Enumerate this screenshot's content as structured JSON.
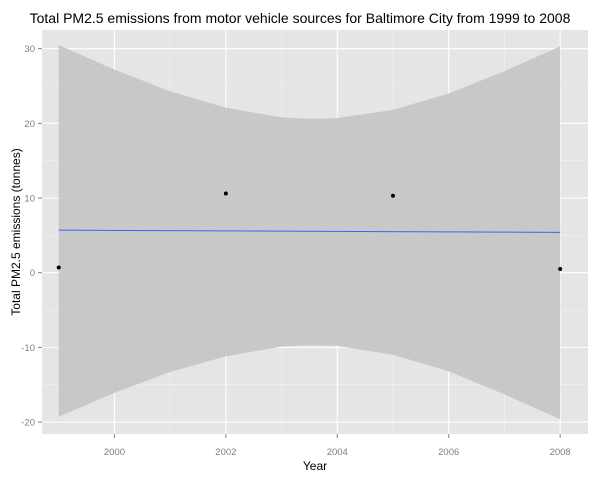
{
  "chart_data": {
    "type": "scatter",
    "title": "Total PM2.5 emissions from motor vehicle sources for Baltimore City from 1999 to 2008",
    "xlabel": "Year",
    "ylabel": "Total PM2.5 emissions (tonnes)",
    "x_ticks": [
      2000,
      2002,
      2004,
      2006,
      2008
    ],
    "y_ticks": [
      -20,
      -10,
      0,
      10,
      20,
      30
    ],
    "xlim": [
      1998.7,
      2008.5
    ],
    "ylim": [
      -21.6,
      32.5
    ],
    "grid": true,
    "legend": "none",
    "series": [
      {
        "x": [
          1999,
          2002,
          2005,
          2008
        ],
        "y": [
          0.7,
          10.6,
          10.3,
          0.5
        ]
      }
    ],
    "fit_line": {
      "method": "linear",
      "x": [
        1999,
        2008
      ],
      "y": [
        5.7,
        5.4
      ]
    },
    "confidence_band": {
      "x": [
        1999,
        2000,
        2001,
        2002,
        2003,
        2003.5,
        2004,
        2005,
        2006,
        2007,
        2008
      ],
      "upper": [
        30.5,
        27.2,
        24.3,
        22.1,
        20.8,
        20.6,
        20.7,
        21.8,
        24.0,
        27.0,
        30.3
      ],
      "lower": [
        -19.3,
        -16.1,
        -13.3,
        -11.2,
        -9.9,
        -9.7,
        -9.8,
        -11.0,
        -13.2,
        -16.3,
        -19.6
      ]
    },
    "colors": {
      "panel": "#e5e5e5",
      "grid_major": "#ffffff",
      "grid_minor": "#f2f2f2",
      "band": "#c8c8c8",
      "line": "#3366ff",
      "point": "#000000",
      "tick_text": "#7f7f7f"
    }
  }
}
